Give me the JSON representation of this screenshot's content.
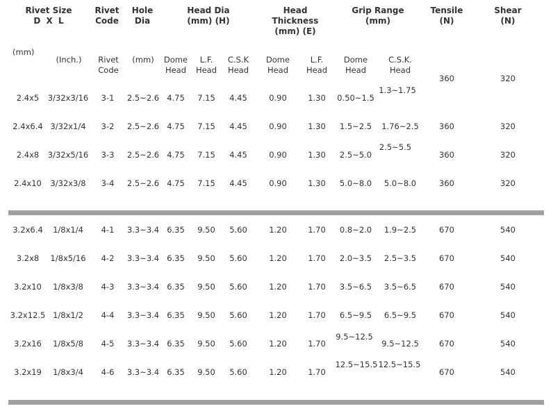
{
  "header_main": {
    "rivet_size": "Rivet Size",
    "dxl": "D X L",
    "rivet_code_1": "Rivet",
    "rivet_code_2": "Code",
    "hole_dia_1": "Hole",
    "hole_dia_2": "Dia",
    "head_dia_1": "Head Dia",
    "head_dia_2": "(mm) (H)",
    "head_thk_1": "Head",
    "head_thk_2": "Thickness",
    "head_thk_3": "(mm) (E)",
    "grip_1": "Grip Range",
    "grip_2": "(mm)",
    "tensile_1": "Tensile",
    "tensile_2": "(N)",
    "shear_1": "Shear",
    "shear_2": "(N)"
  },
  "header_sub": {
    "mm": "(mm)",
    "inch": "(Inch.)",
    "code_1": "Rivet",
    "code_2": "Code",
    "hole_mm": "(mm)",
    "dome_1": "Dome",
    "dome_2": "Head",
    "lf_1": "L.F.",
    "lf_2": "Head",
    "csk_1": "C.S.K",
    "csk_2": "Head",
    "thk_dome_1": "Dome",
    "thk_dome_2": "Head",
    "thk_lf_1": "L.F.",
    "thk_lf_2": "Head",
    "grip_dome_1": "Dome",
    "grip_dome_2": "Head",
    "grip_csk_1": "C.S.K.",
    "grip_csk_2": "Head"
  },
  "group1": [
    {
      "size": "2.4x5",
      "inch": "3/32x3/16",
      "code": "3-1",
      "hole": "2.5~2.6",
      "dome": "4.75",
      "lf": "7.15",
      "csk": "4.45",
      "thk_dome": "0.90",
      "thk_lf": "1.30",
      "grip_dome": "0.50~1.5",
      "grip_csk": "1.3~1.75",
      "tensile": "360",
      "shear": "320"
    },
    {
      "size": "2.4x6.4",
      "inch": "3/32x1/4",
      "code": "3-2",
      "hole": "2.5~2.6",
      "dome": "4.75",
      "lf": "7.15",
      "csk": "4.45",
      "thk_dome": "0.90",
      "thk_lf": "1.30",
      "grip_dome": "1.5~2.5",
      "grip_csk": "1.76~2.5",
      "tensile": "360",
      "shear": "320"
    },
    {
      "size": "2.4x8",
      "inch": "3/32x5/16",
      "code": "3-3",
      "hole": "2.5~2.6",
      "dome": "4.75",
      "lf": "7.15",
      "csk": "4.45",
      "thk_dome": "0.90",
      "thk_lf": "1.30",
      "grip_dome": "2.5~5.0",
      "grip_csk": "2.5~5.5",
      "tensile": "360",
      "shear": "320"
    },
    {
      "size": "2.4x10",
      "inch": "3/32x3/8",
      "code": "3-4",
      "hole": "2.5~2.6",
      "dome": "4.75",
      "lf": "7.15",
      "csk": "4.45",
      "thk_dome": "0.90",
      "thk_lf": "1.30",
      "grip_dome": "5.0~8.0",
      "grip_csk": "5.0~8.0",
      "tensile": "360",
      "shear": "320"
    }
  ],
  "group2": [
    {
      "size": "3.2x6.4",
      "inch": "1/8x1/4",
      "code": "4-1",
      "hole": "3.3~3.4",
      "dome": "6.35",
      "lf": "9.50",
      "csk": "5.60",
      "thk_dome": "1.20",
      "thk_lf": "1.70",
      "grip_dome": "0.8~2.0",
      "grip_csk": "1.9~2.5",
      "tensile": "670",
      "shear": "540"
    },
    {
      "size": "3.2x8",
      "inch": "1/8x5/16",
      "code": "4-2",
      "hole": "3.3~3.4",
      "dome": "6.35",
      "lf": "9.50",
      "csk": "5.60",
      "thk_dome": "1.20",
      "thk_lf": "1.70",
      "grip_dome": "2.0~3.5",
      "grip_csk": "2.5~3.5",
      "tensile": "670",
      "shear": "540"
    },
    {
      "size": "3.2x10",
      "inch": "1/8x3/8",
      "code": "4-3",
      "hole": "3.3~3.4",
      "dome": "6.35",
      "lf": "9.50",
      "csk": "5.60",
      "thk_dome": "1.20",
      "thk_lf": "1.70",
      "grip_dome": "3.5~6.5",
      "grip_csk": "3.5~6.5",
      "tensile": "670",
      "shear": "540"
    },
    {
      "size": "3.2x12.5",
      "inch": "1/8x1/2",
      "code": "4-4",
      "hole": "3.3~3.4",
      "dome": "6.35",
      "lf": "9.50",
      "csk": "5.60",
      "thk_dome": "1.20",
      "thk_lf": "1.70",
      "grip_dome": "6.5~9.5",
      "grip_csk": "6.5~9.5",
      "tensile": "670",
      "shear": "540"
    },
    {
      "size": "3.2x16",
      "inch": "1/8x5/8",
      "code": "4-5",
      "hole": "3.3~3.4",
      "dome": "6.35",
      "lf": "9.50",
      "csk": "5.60",
      "thk_dome": "1.20",
      "thk_lf": "1.70",
      "grip_dome": "9.5~12.5",
      "grip_csk": "9.5~12.5",
      "tensile": "670",
      "shear": "540"
    },
    {
      "size": "3.2x19",
      "inch": "1/8x3/4",
      "code": "4-6",
      "hole": "3.3~3.4",
      "dome": "6.35",
      "lf": "9.50",
      "csk": "5.60",
      "thk_dome": "1.20",
      "thk_lf": "1.70",
      "grip_dome": "12.5~15.5",
      "grip_csk": "12.5~15.5",
      "tensile": "670",
      "shear": "540"
    }
  ]
}
